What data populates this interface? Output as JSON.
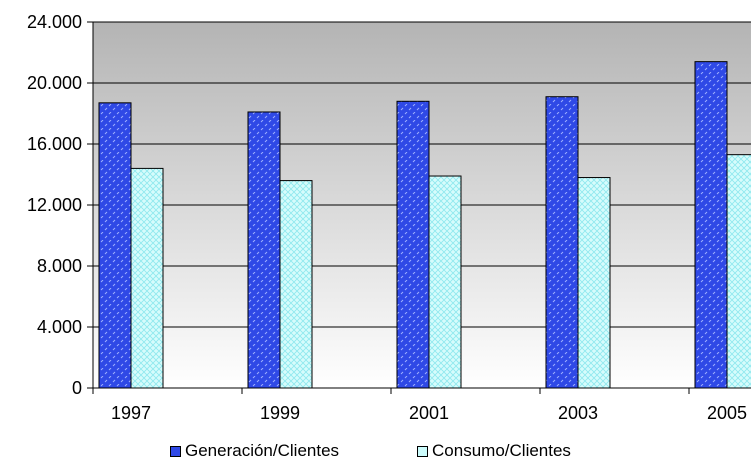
{
  "chart_data": {
    "type": "bar",
    "categories": [
      "1997",
      "1999",
      "2001",
      "2003",
      "2005"
    ],
    "series": [
      {
        "name": "Generación/Clientes",
        "values": [
          18700,
          18100,
          18800,
          19100,
          21400
        ],
        "color": "#2f49e6"
      },
      {
        "name": "Consumo/Clientes",
        "values": [
          14400,
          13600,
          13900,
          13800,
          15300
        ],
        "color": "#ccfcfc"
      }
    ],
    "ylim": [
      0,
      24000
    ],
    "yticks": [
      0,
      4000,
      8000,
      12000,
      16000,
      20000,
      24000
    ],
    "ytick_labels": [
      "0",
      "4.000",
      "8.000",
      "12.000",
      "16.000",
      "20.000",
      "24.000"
    ],
    "grid": true,
    "legend_position": "bottom",
    "plot_background": "gradient gray-to-white"
  }
}
